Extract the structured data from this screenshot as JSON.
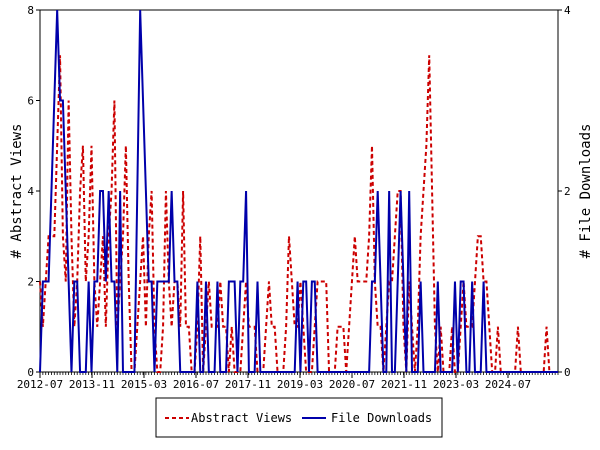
{
  "chart_data": {
    "type": "line",
    "title": "",
    "xlabel": "",
    "ylabel": "# Abstract Views",
    "y2label": "# File Downloads",
    "x_tick_labels": [
      "2012-07",
      "2013-11",
      "2015-03",
      "2016-07",
      "2017-11",
      "2019-03",
      "2020-07",
      "2021-11",
      "2023-03",
      "2024-07"
    ],
    "ylim": [
      0,
      8
    ],
    "y_ticks": [
      0,
      2,
      4,
      6,
      8
    ],
    "y2lim": [
      0,
      4
    ],
    "y2_ticks": [
      0,
      2,
      4
    ],
    "grid": false,
    "legend_position": "bottom",
    "series": [
      {
        "name": "Abstract Views",
        "axis": "left",
        "color": "#cc0000",
        "style": "dashed",
        "values": [
          2,
          1,
          2,
          3,
          3,
          3,
          5,
          7,
          3,
          2,
          6,
          3,
          1,
          2,
          4,
          5,
          2,
          3,
          5,
          2,
          1,
          2,
          3,
          1,
          3,
          4,
          6,
          1,
          2,
          3,
          5,
          2,
          0,
          0,
          1,
          2,
          3,
          1,
          3,
          4,
          1,
          0,
          0,
          1,
          4,
          2,
          1,
          2,
          2,
          1,
          4,
          1,
          1,
          0,
          0,
          1,
          3,
          0,
          1,
          2,
          1,
          1,
          1,
          2,
          1,
          1,
          0,
          1,
          0,
          0,
          0,
          1,
          2,
          1,
          1,
          1,
          0,
          0,
          0,
          1,
          2,
          1,
          1,
          0,
          0,
          0,
          1,
          3,
          2,
          1,
          1,
          2,
          1,
          0,
          0,
          0,
          1,
          2,
          2,
          2,
          2,
          0,
          0,
          0,
          1,
          1,
          1,
          0,
          1,
          2,
          3,
          2,
          2,
          2,
          2,
          3,
          5,
          2,
          1,
          1,
          0,
          1,
          2,
          2,
          3,
          4,
          4,
          1,
          0,
          2,
          1,
          0,
          1,
          3,
          4,
          5,
          7,
          4,
          1,
          0,
          1,
          0,
          0,
          0,
          1,
          0,
          0,
          1,
          2,
          1,
          1,
          1,
          2,
          3,
          3,
          2,
          2,
          1,
          0,
          0,
          1,
          0,
          0,
          0,
          0,
          0,
          0,
          1,
          0,
          0,
          0,
          0,
          0,
          0,
          0,
          0,
          0,
          1,
          0,
          0,
          0,
          0
        ]
      },
      {
        "name": "File Downloads",
        "axis": "right",
        "color": "#0000aa",
        "style": "solid",
        "values": [
          0,
          1,
          1,
          1,
          2,
          3,
          4,
          3,
          3,
          2,
          1,
          0,
          1,
          1,
          0,
          0,
          0,
          1,
          0,
          1,
          1,
          2,
          2,
          1,
          2,
          1,
          1,
          0,
          2,
          0,
          0,
          0,
          0,
          0,
          2,
          4,
          3,
          2,
          1,
          1,
          0,
          1,
          1,
          1,
          1,
          1,
          2,
          1,
          1,
          0,
          0,
          0,
          0,
          0,
          0,
          1,
          0,
          0,
          1,
          0,
          0,
          0,
          1,
          0,
          0,
          0,
          1,
          1,
          1,
          0,
          1,
          1,
          2,
          0,
          0,
          0,
          1,
          0,
          0,
          0,
          0,
          0,
          0,
          0,
          0,
          0,
          0,
          0,
          0,
          0,
          1,
          0,
          1,
          1,
          0,
          1,
          1,
          0,
          0,
          0,
          0,
          0,
          0,
          0,
          0,
          0,
          0,
          0,
          0,
          0,
          0,
          0,
          0,
          0,
          0,
          0,
          1,
          1,
          2,
          1,
          0,
          0,
          2,
          0,
          0,
          1,
          2,
          1,
          0,
          2,
          0,
          0,
          0,
          1,
          0,
          0,
          0,
          0,
          0,
          1,
          0,
          0,
          0,
          0,
          0,
          1,
          0,
          1,
          1,
          0,
          0,
          1,
          0,
          0,
          0,
          1,
          0,
          0,
          0,
          0,
          0,
          0,
          0,
          0,
          0,
          0,
          0,
          0,
          0,
          0,
          0,
          0,
          0,
          0,
          0,
          0,
          0,
          0,
          0,
          0,
          0,
          0
        ]
      }
    ]
  }
}
